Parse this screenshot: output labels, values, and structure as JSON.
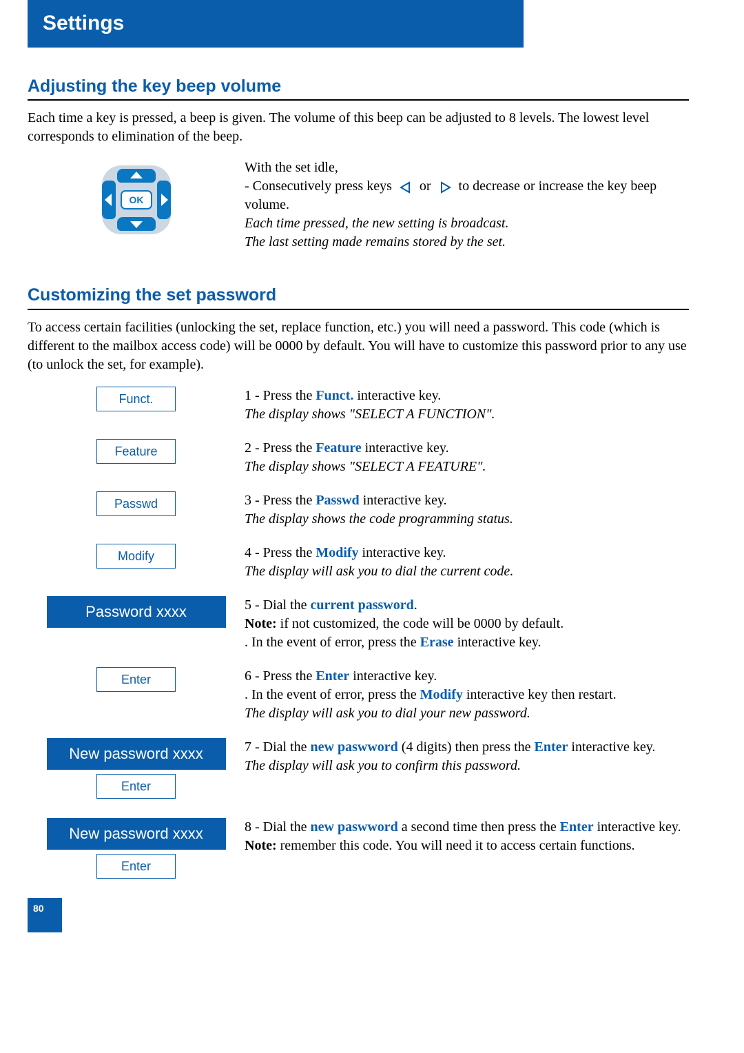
{
  "header": {
    "title": "Settings"
  },
  "section1": {
    "heading": "Adjusting the key beep volume",
    "intro": "Each time a key is pressed, a beep is given. The volume of this beep can be adjusted to 8 levels. The lowest level corresponds to elimination of the beep.",
    "line1": "With the set idle,",
    "line2a": "- Consecutively press keys ",
    "line2b": " or ",
    "line2c": " to decrease or increase the key beep volume.",
    "italic1": "Each time pressed, the new setting is broadcast.",
    "italic2": "The last setting made remains stored by the set."
  },
  "section2": {
    "heading": "Customizing the set password",
    "intro": "To access certain facilities (unlocking the set, replace function, etc.) you will need a password. This code (which is different to the mailbox access code) will be 0000 by default. You will have to customize this password prior to any use (to unlock the set, for example)."
  },
  "steps": [
    {
      "key": "Funct.",
      "keyType": "small",
      "parts": [
        "1 - Press the ",
        "Funct.",
        " interactive key."
      ],
      "italic": "The display shows \"SELECT A FUNCTION\"."
    },
    {
      "key": "Feature",
      "keyType": "small",
      "parts": [
        "2 - Press the ",
        "Feature",
        " interactive key."
      ],
      "italic": "The display shows \"SELECT A FEATURE\"."
    },
    {
      "key": "Passwd",
      "keyType": "small",
      "parts": [
        "3 - Press the ",
        "Passwd",
        " interactive key."
      ],
      "italic": "The display shows the code programming status."
    },
    {
      "key": "Modify",
      "keyType": "small",
      "parts": [
        "4 - Press the ",
        "Modify",
        " interactive key."
      ],
      "italic": "The display will ask you to dial the current code."
    },
    {
      "key": "Password xxxx",
      "keyType": "large",
      "parts": [
        "5 - Dial the ",
        "current password",
        "."
      ],
      "noteLabel": "Note:",
      "note": " if not customized, the code will be 0000 by default.",
      "extraA": ". In the event of error, press the ",
      "extraKey": "Erase",
      "extraB": " interactive key."
    },
    {
      "key": "Enter",
      "keyType": "small",
      "parts": [
        "6 - Press the ",
        "Enter",
        " interactive key."
      ],
      "extraA": ". In the event of error, press the ",
      "extraKey": "Modify",
      "extraB": " interactive key then restart.",
      "italic": "The display will ask you to dial your new password."
    },
    {
      "key": "New password xxxx",
      "keyType": "large",
      "key2": "Enter",
      "key2Type": "small",
      "parts": [
        "7 - Dial the ",
        "new paswword",
        " (4 digits) then press the ",
        "Enter",
        " interactive key."
      ],
      "italic": "The display will ask you to confirm this password."
    },
    {
      "key": "New password xxxx",
      "keyType": "large",
      "key2": "Enter",
      "key2Type": "small",
      "parts": [
        "8 - Dial the ",
        "new paswword",
        " a second time then press the ",
        "Enter",
        " interactive key."
      ],
      "noteLabel": "Note:",
      "note": " remember this code. You will need it to access certain functions."
    }
  ],
  "navpad": {
    "colors": {
      "pad_bg": "#cbd7e2",
      "btn_fill": "#0a77c2",
      "ok_bg": "#ffffff",
      "ok_text": "#0a77c2",
      "arrow": "#ffffff"
    },
    "ok_label": "OK"
  },
  "page_number": "80",
  "brand_colors": {
    "blue": "#0a5dab"
  }
}
